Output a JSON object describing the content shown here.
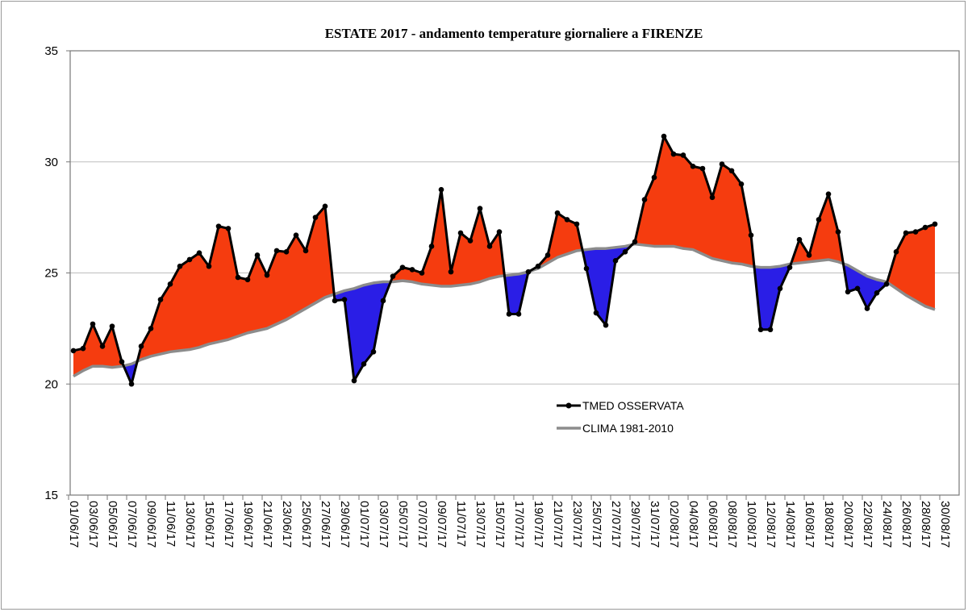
{
  "chart_data": {
    "type": "line",
    "title": "ESTATE 2017 - andamento temperature giornaliere a FIRENZE",
    "xlabel": "",
    "ylabel": "",
    "ylim": [
      15,
      35
    ],
    "y_ticks": [
      "15",
      "20",
      "25",
      "30",
      "35"
    ],
    "grid": true,
    "legend_placement": "center-right",
    "x_tick_labels": [
      "01/06/17",
      "03/06/17",
      "05/06/17",
      "07/06/17",
      "09/06/17",
      "11/06/17",
      "13/06/17",
      "15/06/17",
      "17/06/17",
      "19/06/17",
      "21/06/17",
      "23/06/17",
      "25/06/17",
      "27/06/17",
      "29/06/17",
      "01/07/17",
      "03/07/17",
      "05/07/17",
      "07/07/17",
      "09/07/17",
      "11/07/17",
      "13/07/17",
      "15/07/17",
      "17/07/17",
      "19/07/17",
      "21/07/17",
      "23/07/17",
      "25/07/17",
      "27/07/17",
      "29/07/17",
      "31/07/17",
      "02/08/17",
      "04/08/17",
      "06/08/17",
      "08/08/17",
      "10/08/17",
      "12/08/17",
      "14/08/17",
      "16/08/17",
      "18/08/17",
      "20/08/17",
      "22/08/17",
      "24/08/17",
      "26/08/17",
      "28/08/17",
      "30/08/17"
    ],
    "series": [
      {
        "name": "TMED OSSERVATA",
        "color": "#000000",
        "values": [
          21.5,
          21.6,
          22.7,
          21.7,
          22.6,
          21.0,
          20.0,
          21.7,
          22.5,
          23.8,
          24.5,
          25.3,
          25.6,
          25.9,
          25.3,
          27.1,
          27.0,
          24.8,
          24.7,
          25.8,
          24.9,
          26.0,
          25.95,
          26.7,
          26.0,
          27.5,
          28.0,
          23.75,
          23.8,
          20.15,
          20.9,
          21.45,
          23.75,
          24.85,
          25.25,
          25.15,
          25.0,
          26.2,
          28.75,
          25.05,
          26.8,
          26.45,
          27.9,
          26.2,
          26.85,
          23.15,
          23.15,
          25.05,
          25.3,
          25.8,
          27.7,
          27.4,
          27.2,
          25.2,
          23.2,
          22.65,
          25.55,
          25.95,
          26.4,
          28.3,
          29.3,
          31.15,
          30.35,
          30.3,
          29.8,
          29.7,
          28.4,
          29.9,
          29.6,
          29.0,
          26.7,
          22.45,
          22.45,
          24.3,
          25.25,
          26.5,
          25.8,
          27.4,
          28.55,
          26.85,
          24.15,
          24.3,
          23.4,
          24.1,
          24.5,
          25.95,
          26.8,
          26.85,
          27.05,
          27.2
        ]
      },
      {
        "name": "CLIMA 1981-2010",
        "color": "#8c8c8c",
        "values": [
          20.35,
          20.6,
          20.8,
          20.8,
          20.75,
          20.8,
          20.9,
          21.1,
          21.25,
          21.35,
          21.45,
          21.5,
          21.55,
          21.65,
          21.8,
          21.9,
          22.0,
          22.15,
          22.3,
          22.4,
          22.5,
          22.7,
          22.9,
          23.15,
          23.4,
          23.65,
          23.9,
          24.05,
          24.2,
          24.3,
          24.45,
          24.55,
          24.6,
          24.6,
          24.65,
          24.6,
          24.5,
          24.45,
          24.4,
          24.4,
          24.45,
          24.5,
          24.6,
          24.75,
          24.85,
          24.9,
          24.95,
          25.05,
          25.2,
          25.45,
          25.7,
          25.85,
          26.0,
          26.05,
          26.1,
          26.1,
          26.15,
          26.2,
          26.3,
          26.25,
          26.2,
          26.2,
          26.2,
          26.1,
          26.05,
          25.85,
          25.65,
          25.55,
          25.45,
          25.4,
          25.3,
          25.25,
          25.25,
          25.3,
          25.4,
          25.45,
          25.5,
          25.55,
          25.6,
          25.5,
          25.35,
          25.1,
          24.85,
          24.7,
          24.6,
          24.3,
          24.0,
          23.75,
          23.5,
          23.35
        ]
      }
    ],
    "fill_above_color": "#f53c0f",
    "fill_below_color": "#2a1ee6"
  }
}
